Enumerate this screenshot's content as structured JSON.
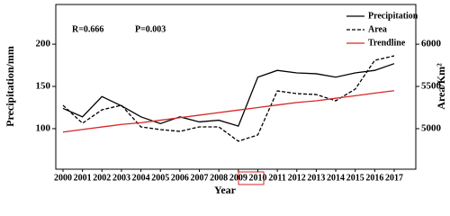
{
  "chart_data": {
    "type": "line",
    "xlabel": "Year",
    "ylabel": "Precipitation/mm",
    "y2label": "Area/Km²",
    "annotations": [
      "R=0.666",
      "P=0.003"
    ],
    "categories": [
      "2000",
      "2001",
      "2002",
      "2003",
      "2004",
      "2005",
      "2006",
      "2007",
      "2008",
      "2009",
      "2010",
      "2011",
      "2012",
      "2013",
      "2014",
      "2015",
      "2016",
      "2017"
    ],
    "series": [
      {
        "name": "Precipitation",
        "color": "#000000",
        "dash": false,
        "values": [
          124,
          114,
          138,
          127,
          114,
          106,
          114,
          108,
          110,
          103,
          161,
          169,
          166,
          165,
          161,
          166,
          169,
          177
        ]
      },
      {
        "name": "Area",
        "color": "#000000",
        "dash": true,
        "axis": "y2",
        "values": [
          5277,
          5064,
          5223,
          5277,
          5021,
          4989,
          4968,
          5021,
          5021,
          4851,
          4926,
          5447,
          5415,
          5404,
          5330,
          5468,
          5809,
          5862
        ]
      },
      {
        "name": "Trendline",
        "color": "#d62728",
        "dash": false,
        "values": [
          96,
          99,
          102,
          105,
          107,
          110,
          113,
          116,
          119,
          122,
          125,
          128,
          131,
          133,
          136,
          139,
          142,
          145
        ]
      }
    ],
    "ylim": [
      52,
      247
    ],
    "yticks": [
      100,
      150,
      200
    ],
    "y2lim": [
      4520,
      6470
    ],
    "y2ticks": [
      5000,
      5500,
      6000
    ],
    "legend": "upper right"
  }
}
